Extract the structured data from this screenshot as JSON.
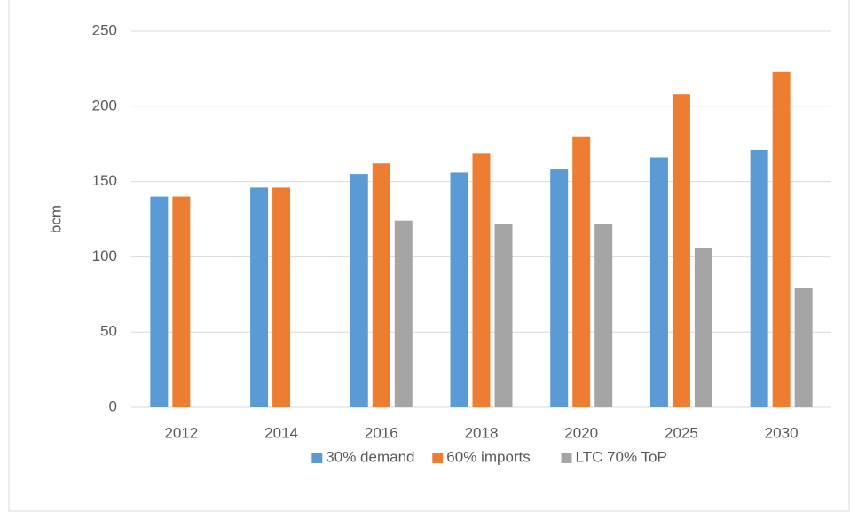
{
  "chart_data": {
    "type": "bar",
    "ylabel": "bcm",
    "categories": [
      "2012",
      "2014",
      "2016",
      "2018",
      "2020",
      "2025",
      "2030"
    ],
    "series": [
      {
        "name": "30% demand",
        "color": "#5b9bd5",
        "values": [
          140,
          146,
          155,
          156,
          158,
          166,
          171
        ]
      },
      {
        "name": "60% imports",
        "color": "#ed7d31",
        "values": [
          140,
          146,
          162,
          169,
          180,
          208,
          223
        ]
      },
      {
        "name": "LTC 70% ToP",
        "color": "#a5a5a5",
        "values": [
          null,
          null,
          124,
          122,
          122,
          106,
          79
        ]
      }
    ],
    "ylim": [
      0,
      250
    ],
    "yticks": [
      0,
      50,
      100,
      150,
      200,
      250
    ],
    "grid": true,
    "legend": "bottom"
  }
}
